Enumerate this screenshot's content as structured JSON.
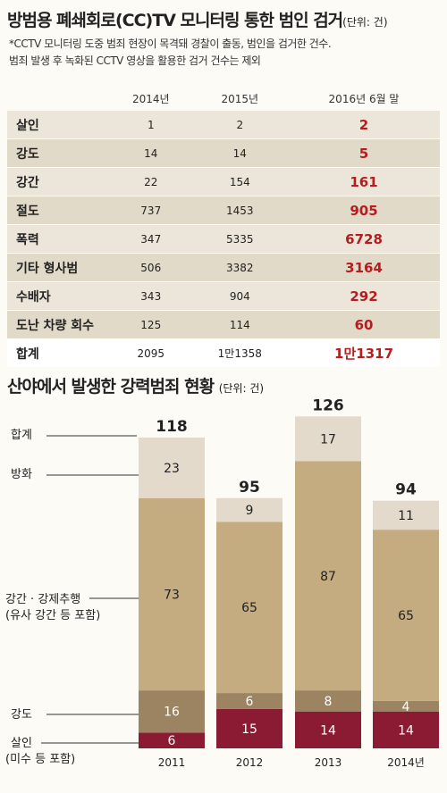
{
  "header": {
    "title": "방범용 폐쇄회로(CC)TV 모니터링 통한 범인 검거",
    "unit": "(단위: 건)",
    "note_line1": "*CCTV 모니터링 도중 범죄 현장이 목격돼 경찰이 출동, 범인을 검거한 건수.",
    "note_line2": "범죄 발생 후 녹화된 CCTV 영상을 활용한 검거 건수는 제외"
  },
  "table": {
    "columns": [
      "2014년",
      "2015년",
      "2016년 6월 말"
    ],
    "rows": [
      {
        "label": "살인",
        "values": [
          "1",
          "2",
          "2"
        ]
      },
      {
        "label": "강도",
        "values": [
          "14",
          "14",
          "5"
        ]
      },
      {
        "label": "강간",
        "values": [
          "22",
          "154",
          "161"
        ]
      },
      {
        "label": "절도",
        "values": [
          "737",
          "1453",
          "905"
        ]
      },
      {
        "label": "폭력",
        "values": [
          "347",
          "5335",
          "6728"
        ]
      },
      {
        "label": "기타 형사범",
        "values": [
          "506",
          "3382",
          "3164"
        ]
      },
      {
        "label": "수배자",
        "values": [
          "343",
          "904",
          "292"
        ]
      },
      {
        "label": "도난 차량 회수",
        "values": [
          "125",
          "114",
          "60"
        ]
      },
      {
        "label": "합계",
        "values": [
          "2095",
          "1만1358",
          "1만1317"
        ]
      }
    ]
  },
  "chart2": {
    "title": "산야에서 발생한 강력범죄 현황",
    "unit": "(단위: 건)"
  },
  "chart_data": {
    "type": "bar",
    "stacked": true,
    "categories": [
      "2011",
      "2012",
      "2013",
      "2014년"
    ],
    "series": [
      {
        "name": "살인 (미수 등 포함)",
        "values": [
          6,
          15,
          14,
          14
        ],
        "color": "#8b1a33"
      },
      {
        "name": "강도",
        "values": [
          16,
          6,
          8,
          4
        ],
        "color": "#9c8462"
      },
      {
        "name": "강간 · 강제추행 (유사 강간 등 포함)",
        "values": [
          73,
          65,
          87,
          65
        ],
        "color": "#c4ab80"
      },
      {
        "name": "방화",
        "values": [
          23,
          9,
          17,
          11
        ],
        "color": "#e3dacb"
      }
    ],
    "totals": [
      118,
      95,
      126,
      94
    ],
    "legend_labels": {
      "total": "합계",
      "arson": "방화",
      "rape_line1": "강간 · 강제추행",
      "rape_line2": "(유사 강간 등 포함)",
      "robbery": "강도",
      "murder_line1": "살인",
      "murder_line2": "(미수 등 포함)"
    }
  }
}
